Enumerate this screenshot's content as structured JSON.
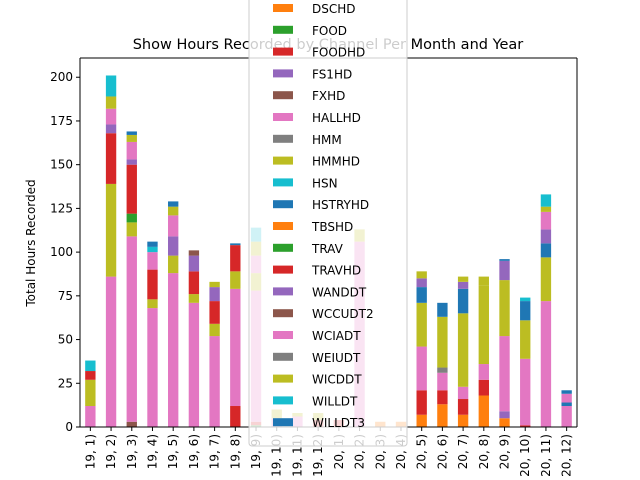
{
  "chart_data": {
    "type": "bar",
    "stacked": true,
    "title": "Show Hours Recorded by Channel Per Month and Year",
    "xlabel": "",
    "ylabel": "Total Hours Recorded",
    "ylim": [
      0,
      211
    ],
    "yticks": [
      0,
      25,
      50,
      75,
      100,
      125,
      150,
      175,
      200
    ],
    "grid": false,
    "legend_position": "upper center, overlapping plot",
    "categories": [
      "19, 1)",
      "19, 2)",
      "19, 3)",
      "19, 4)",
      "19, 5)",
      "19, 6)",
      "19, 7)",
      "19, 8)",
      "19, 9)",
      "19, 10)",
      "19, 11)",
      "19, 12)",
      "20, 1)",
      "20, 2)",
      "20, 3)",
      "20, 4)",
      "20, 5)",
      "20, 6)",
      "20, 7)",
      "20, 8)",
      "20, 9)",
      "20, 10)",
      "20, 11)",
      "20, 12)"
    ],
    "series": [
      {
        "name": "DSCHD",
        "color": "#ff7f0e",
        "values": [
          0,
          0,
          0,
          0,
          0,
          0,
          0,
          0,
          0,
          0,
          0,
          0,
          0,
          0,
          3,
          3,
          7,
          13,
          7,
          18,
          5,
          0,
          0,
          0
        ]
      },
      {
        "name": "FOOD",
        "color": "#2ca02c",
        "values": [
          0,
          0,
          0,
          0,
          0,
          0,
          0,
          0,
          1,
          0,
          0,
          0,
          0,
          0,
          0,
          0,
          0,
          0,
          0,
          0,
          0,
          0,
          0,
          0
        ]
      },
      {
        "name": "FOODHD",
        "color": "#d62728",
        "values": [
          0,
          0,
          0,
          0,
          0,
          0,
          0,
          12,
          2,
          0,
          0,
          4,
          4,
          0,
          0,
          0,
          14,
          8,
          9,
          9,
          0,
          1,
          0,
          0
        ]
      },
      {
        "name": "FS1HD",
        "color": "#9467bd",
        "values": [
          0,
          0,
          0,
          0,
          0,
          0,
          0,
          0,
          0,
          0,
          0,
          0,
          0,
          0,
          0,
          0,
          0,
          0,
          0,
          0,
          4,
          0,
          0,
          0
        ]
      },
      {
        "name": "FXHD",
        "color": "#8c564b",
        "values": [
          0,
          0,
          3,
          0,
          0,
          0,
          0,
          0,
          0,
          0,
          0,
          0,
          0,
          0,
          0,
          0,
          0,
          0,
          0,
          0,
          0,
          0,
          0,
          0
        ]
      },
      {
        "name": "HALLHD",
        "color": "#e377c2",
        "values": [
          12,
          86,
          106,
          68,
          88,
          71,
          52,
          67,
          75,
          5,
          6,
          0,
          0,
          106,
          0,
          0,
          25,
          10,
          7,
          9,
          43,
          38,
          72,
          12
        ]
      },
      {
        "name": "HMM",
        "color": "#7f7f7f",
        "values": [
          0,
          0,
          0,
          0,
          0,
          0,
          0,
          0,
          0,
          0,
          0,
          0,
          0,
          0,
          0,
          0,
          0,
          3,
          0,
          0,
          0,
          0,
          0,
          0
        ]
      },
      {
        "name": "HMMHD",
        "color": "#bcbd22",
        "values": [
          15,
          53,
          8,
          5,
          10,
          5,
          7,
          10,
          10,
          5,
          2,
          4,
          0,
          7,
          0,
          0,
          25,
          29,
          42,
          45,
          32,
          22,
          25,
          0
        ]
      },
      {
        "name": "HSN",
        "color": "#17becf",
        "values": [
          0,
          0,
          0,
          0,
          0,
          0,
          0,
          0,
          0,
          0,
          0,
          0,
          0,
          0,
          0,
          0,
          0,
          0,
          0,
          0,
          0,
          0,
          0,
          0
        ]
      },
      {
        "name": "HSTRYHD",
        "color": "#1f77b4",
        "values": [
          0,
          0,
          0,
          0,
          0,
          0,
          0,
          0,
          0,
          0,
          0,
          0,
          0,
          0,
          0,
          0,
          9,
          8,
          14,
          0,
          0,
          11,
          8,
          2
        ]
      },
      {
        "name": "TBSHD",
        "color": "#ff7f0e",
        "values": [
          0,
          0,
          0,
          0,
          0,
          0,
          0,
          0,
          0,
          0,
          0,
          0,
          0,
          0,
          0,
          0,
          0,
          0,
          0,
          0,
          0,
          0,
          0,
          0
        ]
      },
      {
        "name": "TRAV",
        "color": "#2ca02c",
        "values": [
          0,
          0,
          5,
          0,
          0,
          0,
          0,
          0,
          0,
          0,
          0,
          0,
          0,
          0,
          0,
          0,
          0,
          0,
          0,
          0,
          0,
          0,
          0,
          0
        ]
      },
      {
        "name": "TRAVHD",
        "color": "#d62728",
        "values": [
          5,
          29,
          28,
          17,
          0,
          13,
          13,
          15,
          0,
          0,
          0,
          0,
          0,
          0,
          0,
          0,
          0,
          0,
          0,
          0,
          0,
          0,
          0,
          0
        ]
      },
      {
        "name": "WANDDT",
        "color": "#9467bd",
        "values": [
          0,
          5,
          3,
          0,
          11,
          9,
          8,
          0,
          0,
          0,
          0,
          0,
          0,
          0,
          0,
          0,
          5,
          0,
          4,
          0,
          11,
          0,
          8,
          0
        ]
      },
      {
        "name": "WCCUDT2",
        "color": "#8c564b",
        "values": [
          0,
          0,
          0,
          0,
          0,
          3,
          0,
          0,
          0,
          0,
          0,
          0,
          0,
          0,
          0,
          0,
          0,
          0,
          0,
          0,
          0,
          0,
          0,
          0
        ]
      },
      {
        "name": "WCIADT",
        "color": "#e377c2",
        "values": [
          0,
          9,
          10,
          10,
          12,
          0,
          0,
          0,
          10,
          0,
          0,
          0,
          0,
          0,
          0,
          0,
          0,
          0,
          0,
          0,
          0,
          0,
          10,
          5
        ]
      },
      {
        "name": "WEIUDT",
        "color": "#7f7f7f",
        "values": [
          0,
          0,
          0,
          0,
          0,
          0,
          0,
          0,
          0,
          0,
          0,
          0,
          0,
          0,
          0,
          0,
          0,
          0,
          0,
          0,
          0,
          0,
          0,
          0
        ]
      },
      {
        "name": "WICDDT",
        "color": "#bcbd22",
        "values": [
          0,
          7,
          4,
          0,
          5,
          0,
          3,
          0,
          8,
          0,
          0,
          0,
          0,
          0,
          0,
          0,
          4,
          0,
          3,
          5,
          0,
          0,
          3,
          0
        ]
      },
      {
        "name": "WILLDT",
        "color": "#17becf",
        "values": [
          6,
          12,
          0,
          3,
          0,
          0,
          0,
          0,
          8,
          0,
          0,
          0,
          0,
          0,
          0,
          0,
          0,
          0,
          0,
          0,
          0,
          2,
          7,
          0
        ]
      },
      {
        "name": "WILLDT3",
        "color": "#1f77b4",
        "values": [
          0,
          0,
          2,
          3,
          3,
          0,
          0,
          1,
          0,
          0,
          0,
          0,
          0,
          0,
          0,
          0,
          0,
          0,
          0,
          0,
          1,
          0,
          0,
          2
        ]
      }
    ]
  }
}
